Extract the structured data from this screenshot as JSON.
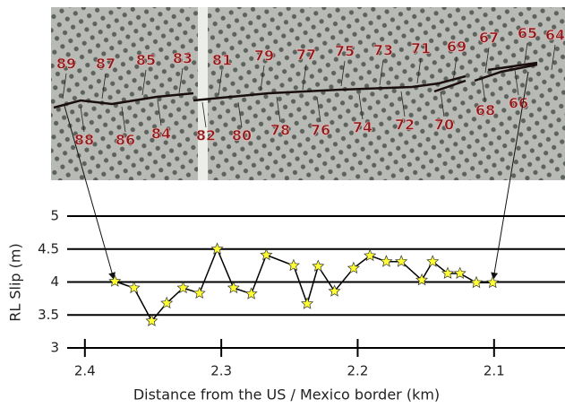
{
  "photo": {
    "labels": [
      "89",
      "87",
      "85",
      "83",
      "81",
      "79",
      "77",
      "75",
      "73",
      "71",
      "69",
      "67",
      "65",
      "64",
      "88",
      "86",
      "84",
      "82",
      "80",
      "78",
      "76",
      "74",
      "72",
      "70",
      "68",
      "66"
    ]
  },
  "chart_data": {
    "type": "line",
    "x_label": "Distance from the US / Mexico border (km)",
    "y_label": "RL Slip (m)",
    "x": [
      2.378,
      2.364,
      2.351,
      2.34,
      2.328,
      2.316,
      2.303,
      2.291,
      2.278,
      2.267,
      2.247,
      2.237,
      2.229,
      2.217,
      2.203,
      2.191,
      2.179,
      2.168,
      2.153,
      2.145,
      2.134,
      2.125,
      2.113,
      2.101
    ],
    "series": [
      {
        "color": "#ffff33",
        "values": [
          4.01,
          3.91,
          3.41,
          3.68,
          3.91,
          3.83,
          4.5,
          3.91,
          3.82,
          4.41,
          4.25,
          3.67,
          4.24,
          3.86,
          4.21,
          4.4,
          4.31,
          4.31,
          4.03,
          4.31,
          4.13,
          4.13,
          3.99,
          3.99
        ]
      }
    ],
    "xlim": [
      2.413,
      2.048
    ],
    "xticks": [
      2.4,
      2.3,
      2.2,
      2.1
    ],
    "ylim": [
      3,
      5
    ],
    "yticks": [
      3,
      3.5,
      4,
      4.5,
      5
    ],
    "grid": true
  }
}
